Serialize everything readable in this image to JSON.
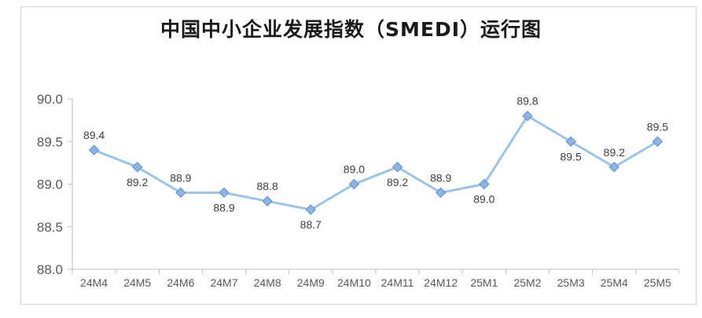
{
  "chart_data": {
    "type": "line",
    "title": "中国中小企业发展指数（SMEDI）运行图",
    "xlabel": "",
    "ylabel": "",
    "categories": [
      "24M4",
      "24M5",
      "24M6",
      "24M7",
      "24M8",
      "24M9",
      "24M10",
      "24M11",
      "24M12",
      "25M1",
      "25M2",
      "25M3",
      "25M4",
      "25M5"
    ],
    "series": [
      {
        "values": [
          89.4,
          89.2,
          88.9,
          88.9,
          88.8,
          88.7,
          89.0,
          89.2,
          88.9,
          89.0,
          89.8,
          89.5,
          89.2,
          89.5
        ],
        "data_labels": [
          "89.4",
          "89.2",
          "88.9",
          "88.9",
          "88.8",
          "88.7",
          "89.0",
          "89.2",
          "88.9",
          "89.0",
          "89.8",
          "89.5",
          "89.2",
          "89.5"
        ],
        "color": "#9dc3e6",
        "marker_color": "#8fb4e3",
        "marker_edge": "#5b8fd1"
      }
    ],
    "ylim": [
      88.0,
      90.0
    ],
    "yticks": [
      "88.0",
      "88.5",
      "89.0",
      "89.5",
      "90.0"
    ],
    "ytick_values": [
      88.0,
      88.5,
      89.0,
      89.5,
      90.0
    ],
    "label_side": [
      "above",
      "below",
      "above",
      "below",
      "above",
      "below",
      "above",
      "below",
      "above",
      "below",
      "above",
      "below",
      "above",
      "above"
    ],
    "grid": false,
    "legend": "none"
  }
}
